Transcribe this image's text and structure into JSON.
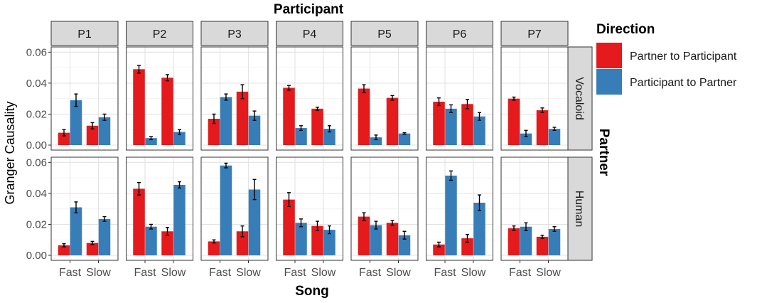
{
  "chart_data": {
    "type": "bar",
    "title": "Participant",
    "xlabel": "Song",
    "ylabel": "Granger Causality",
    "row_facet_title": "Partner",
    "ylim": [
      0,
      0.062
    ],
    "yticks": [
      0.0,
      0.02,
      0.04,
      0.06
    ],
    "ytick_labels": [
      "0.00",
      "0.02",
      "0.04",
      "0.06"
    ],
    "grid": true,
    "legend": {
      "title": "Direction",
      "placement": "right",
      "items": [
        {
          "label": "Partner to Participant",
          "color": "#e41a1c"
        },
        {
          "label": "Participant to Partner",
          "color": "#377eb8"
        }
      ]
    },
    "columns": [
      "P1",
      "P2",
      "P3",
      "P4",
      "P5",
      "P6",
      "P7"
    ],
    "rows": [
      "Vocaloid",
      "Human"
    ],
    "categories": [
      "Fast",
      "Slow"
    ],
    "series_names": [
      "Partner to Participant",
      "Participant to Partner"
    ],
    "panels": [
      {
        "row": "Vocaloid",
        "column": "P1",
        "fast": [
          0.008,
          0.029
        ],
        "slow": [
          0.0125,
          0.018
        ],
        "fast_err": [
          0.002,
          0.004
        ],
        "slow_err": [
          0.002,
          0.002
        ]
      },
      {
        "row": "Vocaloid",
        "column": "P2",
        "fast": [
          0.049,
          0.0045
        ],
        "slow": [
          0.0435,
          0.0085
        ],
        "fast_err": [
          0.0025,
          0.001
        ],
        "slow_err": [
          0.002,
          0.0015
        ]
      },
      {
        "row": "Vocaloid",
        "column": "P3",
        "fast": [
          0.017,
          0.031
        ],
        "slow": [
          0.0345,
          0.019
        ],
        "fast_err": [
          0.003,
          0.002
        ],
        "slow_err": [
          0.0045,
          0.003
        ]
      },
      {
        "row": "Vocaloid",
        "column": "P4",
        "fast": [
          0.037,
          0.011
        ],
        "slow": [
          0.0235,
          0.0105
        ],
        "fast_err": [
          0.0015,
          0.0015
        ],
        "slow_err": [
          0.001,
          0.002
        ]
      },
      {
        "row": "Vocaloid",
        "column": "P5",
        "fast": [
          0.0365,
          0.005
        ],
        "slow": [
          0.0305,
          0.0075
        ],
        "fast_err": [
          0.0025,
          0.0015
        ],
        "slow_err": [
          0.0015,
          0.0005
        ]
      },
      {
        "row": "Vocaloid",
        "column": "P6",
        "fast": [
          0.028,
          0.0235
        ],
        "slow": [
          0.0265,
          0.0185
        ],
        "fast_err": [
          0.0025,
          0.0025
        ],
        "slow_err": [
          0.003,
          0.0025
        ]
      },
      {
        "row": "Vocaloid",
        "column": "P7",
        "fast": [
          0.03,
          0.0075
        ],
        "slow": [
          0.0225,
          0.0105
        ],
        "fast_err": [
          0.001,
          0.002
        ],
        "slow_err": [
          0.0015,
          0.001
        ]
      },
      {
        "row": "Human",
        "column": "P1",
        "fast": [
          0.0065,
          0.031
        ],
        "slow": [
          0.008,
          0.0235
        ],
        "fast_err": [
          0.001,
          0.0035
        ],
        "slow_err": [
          0.001,
          0.0015
        ]
      },
      {
        "row": "Human",
        "column": "P2",
        "fast": [
          0.043,
          0.0185
        ],
        "slow": [
          0.0155,
          0.0455
        ],
        "fast_err": [
          0.004,
          0.0015
        ],
        "slow_err": [
          0.0025,
          0.002
        ]
      },
      {
        "row": "Human",
        "column": "P3",
        "fast": [
          0.009,
          0.058
        ],
        "slow": [
          0.0155,
          0.0425
        ],
        "fast_err": [
          0.001,
          0.0015
        ],
        "slow_err": [
          0.0035,
          0.0065
        ]
      },
      {
        "row": "Human",
        "column": "P4",
        "fast": [
          0.036,
          0.021
        ],
        "slow": [
          0.019,
          0.0165
        ],
        "fast_err": [
          0.0045,
          0.0025
        ],
        "slow_err": [
          0.003,
          0.0025
        ]
      },
      {
        "row": "Human",
        "column": "P5",
        "fast": [
          0.025,
          0.0195
        ],
        "slow": [
          0.021,
          0.013
        ],
        "fast_err": [
          0.0025,
          0.0025
        ],
        "slow_err": [
          0.0015,
          0.0025
        ]
      },
      {
        "row": "Human",
        "column": "P6",
        "fast": [
          0.007,
          0.0515
        ],
        "slow": [
          0.011,
          0.034
        ],
        "fast_err": [
          0.0015,
          0.003
        ],
        "slow_err": [
          0.0025,
          0.005
        ]
      },
      {
        "row": "Human",
        "column": "P7",
        "fast": [
          0.0175,
          0.0185
        ],
        "slow": [
          0.012,
          0.017
        ],
        "fast_err": [
          0.0015,
          0.0025
        ],
        "slow_err": [
          0.001,
          0.0015
        ]
      }
    ]
  }
}
